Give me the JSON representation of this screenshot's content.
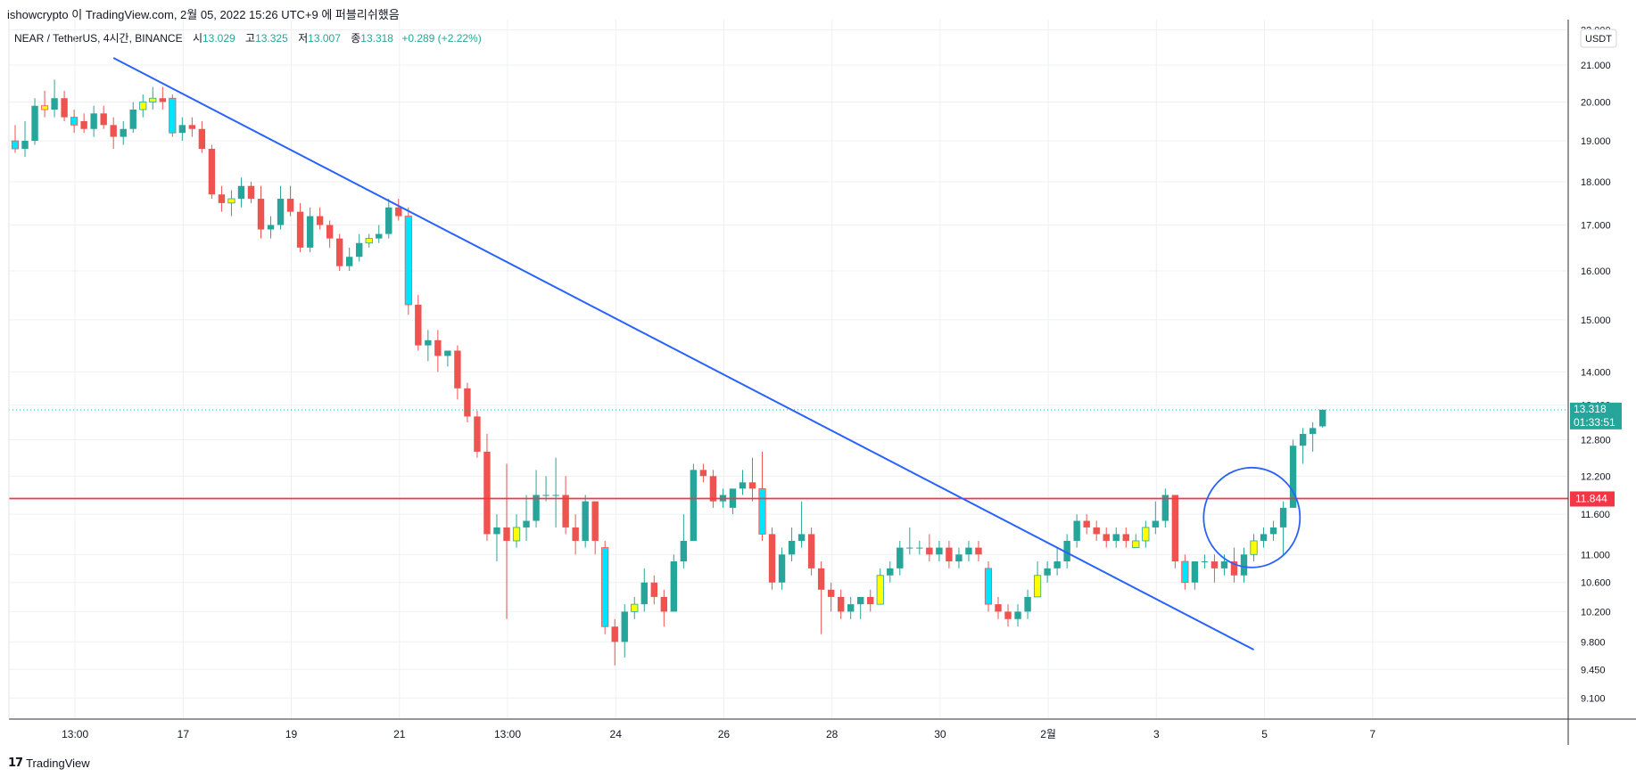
{
  "header": {
    "text": "ishowcrypto 이 TradingView.com, 2월 05, 2022 15:26 UTC+9 에 퍼블리쉬했음"
  },
  "legend": {
    "symbol": "NEAR / TetherUS, 4시간, BINANCE",
    "open_label": "시",
    "open": "13.029",
    "high_label": "고",
    "high": "13.325",
    "low_label": "저",
    "low": "13.007",
    "close_label": "종",
    "close": "13.318",
    "change": "+0.289 (+2.22%)"
  },
  "currency_badge": "USDT",
  "price_tag": {
    "value": "13.318",
    "countdown": "01:33:51"
  },
  "level_tag": {
    "value": "11.844"
  },
  "footer": {
    "logo_text": "TradingView"
  },
  "colors": {
    "up": "#26a69a",
    "down": "#ef5350",
    "highlight_up": "#ffff00",
    "highlight_down": "#00e5ff",
    "trendline": "#2962ff",
    "level": "#f23645",
    "grid": "#eef0f3"
  },
  "chart_data": {
    "type": "candlestick",
    "y_axis_scale": "log",
    "ylim": [
      8.85,
      22.3
    ],
    "y_ticks": [
      "9.100",
      "9.450",
      "9.800",
      "10.200",
      "10.600",
      "11.000",
      "11.600",
      "12.200",
      "12.800",
      "13.400",
      "14.000",
      "15.000",
      "16.000",
      "17.000",
      "18.000",
      "19.000",
      "20.000",
      "21.000",
      "22.000"
    ],
    "x_ticks": [
      "13:00",
      "17",
      "19",
      "21",
      "13:00",
      "24",
      "26",
      "28",
      "30",
      "2월",
      "3",
      "5",
      "7"
    ],
    "horizontal_level": 11.844,
    "last_price": 13.318,
    "trendline": {
      "from": {
        "index": 10,
        "price": 21.2
      },
      "to": {
        "index": 126,
        "price": 9.7
      }
    },
    "circle_annotation": {
      "center_index": 125.8,
      "center_price": 11.55
    },
    "candles": [
      {
        "o": 19.0,
        "h": 19.4,
        "l": 18.7,
        "c": 18.8,
        "hl": "cyan"
      },
      {
        "o": 18.8,
        "h": 19.5,
        "l": 18.6,
        "c": 19.0
      },
      {
        "o": 19.0,
        "h": 20.1,
        "l": 18.9,
        "c": 19.9
      },
      {
        "o": 19.9,
        "h": 20.3,
        "l": 19.6,
        "c": 19.8,
        "hl": "yellow"
      },
      {
        "o": 19.8,
        "h": 20.6,
        "l": 19.6,
        "c": 20.1
      },
      {
        "o": 20.1,
        "h": 20.3,
        "l": 19.5,
        "c": 19.6
      },
      {
        "o": 19.6,
        "h": 19.8,
        "l": 19.2,
        "c": 19.4,
        "hl": "cyan"
      },
      {
        "o": 19.5,
        "h": 19.7,
        "l": 19.2,
        "c": 19.3
      },
      {
        "o": 19.3,
        "h": 19.9,
        "l": 19.1,
        "c": 19.7
      },
      {
        "o": 19.7,
        "h": 19.9,
        "l": 19.3,
        "c": 19.4
      },
      {
        "o": 19.4,
        "h": 19.6,
        "l": 18.8,
        "c": 19.1
      },
      {
        "o": 19.1,
        "h": 19.5,
        "l": 18.9,
        "c": 19.3
      },
      {
        "o": 19.3,
        "h": 20.0,
        "l": 19.2,
        "c": 19.8
      },
      {
        "o": 19.8,
        "h": 20.2,
        "l": 19.6,
        "c": 20.0,
        "hl": "yellow"
      },
      {
        "o": 20.0,
        "h": 20.4,
        "l": 19.8,
        "c": 20.1,
        "hl": "yellow"
      },
      {
        "o": 20.1,
        "h": 20.4,
        "l": 19.8,
        "c": 20.0
      },
      {
        "o": 20.1,
        "h": 20.2,
        "l": 19.1,
        "c": 19.2,
        "hl": "cyan"
      },
      {
        "o": 19.2,
        "h": 19.6,
        "l": 19.0,
        "c": 19.4
      },
      {
        "o": 19.4,
        "h": 19.6,
        "l": 19.1,
        "c": 19.3
      },
      {
        "o": 19.3,
        "h": 19.5,
        "l": 18.7,
        "c": 18.8
      },
      {
        "o": 18.8,
        "h": 18.9,
        "l": 17.6,
        "c": 17.7
      },
      {
        "o": 17.7,
        "h": 17.9,
        "l": 17.3,
        "c": 17.5
      },
      {
        "o": 17.5,
        "h": 17.8,
        "l": 17.2,
        "c": 17.6,
        "hl": "yellow"
      },
      {
        "o": 17.6,
        "h": 18.1,
        "l": 17.4,
        "c": 17.9
      },
      {
        "o": 17.9,
        "h": 18.0,
        "l": 17.5,
        "c": 17.6
      },
      {
        "o": 17.6,
        "h": 17.9,
        "l": 16.7,
        "c": 16.9
      },
      {
        "o": 16.9,
        "h": 17.2,
        "l": 16.7,
        "c": 17.0
      },
      {
        "o": 17.0,
        "h": 17.9,
        "l": 16.9,
        "c": 17.6
      },
      {
        "o": 17.6,
        "h": 17.9,
        "l": 17.2,
        "c": 17.3
      },
      {
        "o": 17.3,
        "h": 17.5,
        "l": 16.4,
        "c": 16.5
      },
      {
        "o": 16.5,
        "h": 17.4,
        "l": 16.4,
        "c": 17.2
      },
      {
        "o": 17.2,
        "h": 17.4,
        "l": 16.9,
        "c": 17.0
      },
      {
        "o": 17.0,
        "h": 17.1,
        "l": 16.5,
        "c": 16.7
      },
      {
        "o": 16.7,
        "h": 16.8,
        "l": 16.0,
        "c": 16.1
      },
      {
        "o": 16.1,
        "h": 16.5,
        "l": 16.0,
        "c": 16.3
      },
      {
        "o": 16.3,
        "h": 16.8,
        "l": 16.2,
        "c": 16.6
      },
      {
        "o": 16.6,
        "h": 16.8,
        "l": 16.5,
        "c": 16.7,
        "hl": "yellow"
      },
      {
        "o": 16.7,
        "h": 17.0,
        "l": 16.6,
        "c": 16.8
      },
      {
        "o": 16.8,
        "h": 17.6,
        "l": 16.7,
        "c": 17.4
      },
      {
        "o": 17.4,
        "h": 17.6,
        "l": 17.1,
        "c": 17.2
      },
      {
        "o": 17.2,
        "h": 17.4,
        "l": 15.1,
        "c": 15.3,
        "hl": "cyan"
      },
      {
        "o": 15.3,
        "h": 15.5,
        "l": 14.4,
        "c": 14.5
      },
      {
        "o": 14.5,
        "h": 14.8,
        "l": 14.2,
        "c": 14.6
      },
      {
        "o": 14.6,
        "h": 14.8,
        "l": 14.0,
        "c": 14.3
      },
      {
        "o": 14.3,
        "h": 14.4,
        "l": 14.1,
        "c": 14.4
      },
      {
        "o": 14.4,
        "h": 14.5,
        "l": 13.5,
        "c": 13.7
      },
      {
        "o": 13.7,
        "h": 13.8,
        "l": 13.1,
        "c": 13.2
      },
      {
        "o": 13.2,
        "h": 13.3,
        "l": 12.5,
        "c": 12.6
      },
      {
        "o": 12.6,
        "h": 12.9,
        "l": 11.2,
        "c": 11.3
      },
      {
        "o": 11.3,
        "h": 11.6,
        "l": 10.9,
        "c": 11.4
      },
      {
        "o": 11.4,
        "h": 12.4,
        "l": 10.1,
        "c": 11.2
      },
      {
        "o": 11.2,
        "h": 11.6,
        "l": 11.1,
        "c": 11.4,
        "hl": "yellow"
      },
      {
        "o": 11.4,
        "h": 11.9,
        "l": 11.2,
        "c": 11.5
      },
      {
        "o": 11.5,
        "h": 12.3,
        "l": 11.4,
        "c": 11.9
      },
      {
        "o": 11.9,
        "h": 12.2,
        "l": 11.8,
        "c": 11.9
      },
      {
        "o": 11.9,
        "h": 12.5,
        "l": 11.4,
        "c": 11.9
      },
      {
        "o": 11.9,
        "h": 12.2,
        "l": 11.3,
        "c": 11.4
      },
      {
        "o": 11.4,
        "h": 11.6,
        "l": 11.0,
        "c": 11.2
      },
      {
        "o": 11.2,
        "h": 11.9,
        "l": 11.1,
        "c": 11.8
      },
      {
        "o": 11.8,
        "h": 11.8,
        "l": 11.0,
        "c": 11.2
      },
      {
        "o": 11.1,
        "h": 11.2,
        "l": 9.9,
        "c": 10.0,
        "hl": "cyan"
      },
      {
        "o": 10.0,
        "h": 10.1,
        "l": 9.5,
        "c": 9.8
      },
      {
        "o": 9.8,
        "h": 10.3,
        "l": 9.6,
        "c": 10.2
      },
      {
        "o": 10.2,
        "h": 10.4,
        "l": 10.1,
        "c": 10.3,
        "hl": "yellow"
      },
      {
        "o": 10.3,
        "h": 10.8,
        "l": 10.2,
        "c": 10.6
      },
      {
        "o": 10.6,
        "h": 10.7,
        "l": 10.3,
        "c": 10.4
      },
      {
        "o": 10.4,
        "h": 10.5,
        "l": 10.0,
        "c": 10.2
      },
      {
        "o": 10.2,
        "h": 11.0,
        "l": 10.2,
        "c": 10.9
      },
      {
        "o": 10.9,
        "h": 11.6,
        "l": 10.8,
        "c": 11.2
      },
      {
        "o": 11.2,
        "h": 12.4,
        "l": 11.2,
        "c": 12.3
      },
      {
        "o": 12.3,
        "h": 12.4,
        "l": 12.1,
        "c": 12.2
      },
      {
        "o": 12.2,
        "h": 12.3,
        "l": 11.7,
        "c": 11.8
      },
      {
        "o": 11.8,
        "h": 12.0,
        "l": 11.7,
        "c": 11.9
      },
      {
        "o": 11.7,
        "h": 12.0,
        "l": 11.6,
        "c": 12.0
      },
      {
        "o": 12.0,
        "h": 12.3,
        "l": 11.9,
        "c": 12.1
      },
      {
        "o": 12.1,
        "h": 12.5,
        "l": 11.8,
        "c": 12.0
      },
      {
        "o": 12.0,
        "h": 12.6,
        "l": 11.2,
        "c": 11.3,
        "hl": "cyan"
      },
      {
        "o": 11.3,
        "h": 11.4,
        "l": 10.5,
        "c": 10.6
      },
      {
        "o": 10.6,
        "h": 11.1,
        "l": 10.5,
        "c": 11.0
      },
      {
        "o": 11.0,
        "h": 11.4,
        "l": 10.9,
        "c": 11.2
      },
      {
        "o": 11.2,
        "h": 11.8,
        "l": 11.1,
        "c": 11.3
      },
      {
        "o": 11.3,
        "h": 11.4,
        "l": 10.7,
        "c": 10.8
      },
      {
        "o": 10.8,
        "h": 10.9,
        "l": 9.9,
        "c": 10.5
      },
      {
        "o": 10.5,
        "h": 10.6,
        "l": 10.2,
        "c": 10.4
      },
      {
        "o": 10.4,
        "h": 10.5,
        "l": 10.1,
        "c": 10.2
      },
      {
        "o": 10.2,
        "h": 10.4,
        "l": 10.1,
        "c": 10.3
      },
      {
        "o": 10.3,
        "h": 10.4,
        "l": 10.1,
        "c": 10.4
      },
      {
        "o": 10.4,
        "h": 10.5,
        "l": 10.2,
        "c": 10.3
      },
      {
        "o": 10.3,
        "h": 10.8,
        "l": 10.3,
        "c": 10.7,
        "hl": "yellow"
      },
      {
        "o": 10.7,
        "h": 10.9,
        "l": 10.6,
        "c": 10.8
      },
      {
        "o": 10.8,
        "h": 11.2,
        "l": 10.7,
        "c": 11.1
      },
      {
        "o": 11.1,
        "h": 11.4,
        "l": 11.0,
        "c": 11.1
      },
      {
        "o": 11.1,
        "h": 11.2,
        "l": 11.0,
        "c": 11.1
      },
      {
        "o": 11.1,
        "h": 11.3,
        "l": 10.9,
        "c": 11.0
      },
      {
        "o": 11.0,
        "h": 11.2,
        "l": 10.9,
        "c": 11.1
      },
      {
        "o": 11.1,
        "h": 11.2,
        "l": 10.8,
        "c": 10.9
      },
      {
        "o": 10.9,
        "h": 11.1,
        "l": 10.8,
        "c": 11.0
      },
      {
        "o": 11.0,
        "h": 11.2,
        "l": 10.9,
        "c": 11.1
      },
      {
        "o": 11.1,
        "h": 11.2,
        "l": 10.9,
        "c": 11.0
      },
      {
        "o": 10.8,
        "h": 10.9,
        "l": 10.2,
        "c": 10.3,
        "hl": "cyan"
      },
      {
        "o": 10.3,
        "h": 10.4,
        "l": 10.1,
        "c": 10.2
      },
      {
        "o": 10.2,
        "h": 10.3,
        "l": 10.0,
        "c": 10.1
      },
      {
        "o": 10.1,
        "h": 10.3,
        "l": 10.0,
        "c": 10.2
      },
      {
        "o": 10.2,
        "h": 10.5,
        "l": 10.1,
        "c": 10.4
      },
      {
        "o": 10.4,
        "h": 10.9,
        "l": 10.4,
        "c": 10.7,
        "hl": "yellow"
      },
      {
        "o": 10.7,
        "h": 10.9,
        "l": 10.6,
        "c": 10.8
      },
      {
        "o": 10.8,
        "h": 11.1,
        "l": 10.7,
        "c": 10.9
      },
      {
        "o": 10.9,
        "h": 11.3,
        "l": 10.8,
        "c": 11.2
      },
      {
        "o": 11.2,
        "h": 11.6,
        "l": 11.1,
        "c": 11.5
      },
      {
        "o": 11.5,
        "h": 11.6,
        "l": 11.3,
        "c": 11.4
      },
      {
        "o": 11.4,
        "h": 11.5,
        "l": 11.2,
        "c": 11.3
      },
      {
        "o": 11.3,
        "h": 11.4,
        "l": 11.1,
        "c": 11.2
      },
      {
        "o": 11.2,
        "h": 11.4,
        "l": 11.1,
        "c": 11.3
      },
      {
        "o": 11.3,
        "h": 11.4,
        "l": 11.1,
        "c": 11.2
      },
      {
        "o": 11.1,
        "h": 11.3,
        "l": 11.1,
        "c": 11.2,
        "hl": "yellow"
      },
      {
        "o": 11.2,
        "h": 11.5,
        "l": 11.1,
        "c": 11.4,
        "hl": "yellow"
      },
      {
        "o": 11.4,
        "h": 11.8,
        "l": 11.3,
        "c": 11.5
      },
      {
        "o": 11.5,
        "h": 12.0,
        "l": 11.4,
        "c": 11.9
      },
      {
        "o": 11.9,
        "h": 11.9,
        "l": 10.8,
        "c": 10.9
      },
      {
        "o": 10.9,
        "h": 11.0,
        "l": 10.5,
        "c": 10.6,
        "hl": "cyan"
      },
      {
        "o": 10.6,
        "h": 10.9,
        "l": 10.5,
        "c": 10.9
      },
      {
        "o": 10.9,
        "h": 11.0,
        "l": 10.8,
        "c": 10.9
      },
      {
        "o": 10.9,
        "h": 11.0,
        "l": 10.6,
        "c": 10.8
      },
      {
        "o": 10.8,
        "h": 11.0,
        "l": 10.7,
        "c": 10.9
      },
      {
        "o": 10.9,
        "h": 11.1,
        "l": 10.6,
        "c": 10.7
      },
      {
        "o": 10.7,
        "h": 11.1,
        "l": 10.6,
        "c": 11.0
      },
      {
        "o": 11.0,
        "h": 11.3,
        "l": 10.9,
        "c": 11.2,
        "hl": "yellow"
      },
      {
        "o": 11.2,
        "h": 11.4,
        "l": 11.1,
        "c": 11.3
      },
      {
        "o": 11.3,
        "h": 11.5,
        "l": 11.2,
        "c": 11.4
      },
      {
        "o": 11.4,
        "h": 11.8,
        "l": 11.0,
        "c": 11.7
      },
      {
        "o": 11.7,
        "h": 12.8,
        "l": 11.7,
        "c": 12.7
      },
      {
        "o": 12.7,
        "h": 13.0,
        "l": 12.4,
        "c": 12.9
      },
      {
        "o": 12.9,
        "h": 13.1,
        "l": 12.6,
        "c": 13.0
      },
      {
        "o": 13.029,
        "h": 13.325,
        "l": 13.007,
        "c": 13.318
      }
    ]
  }
}
